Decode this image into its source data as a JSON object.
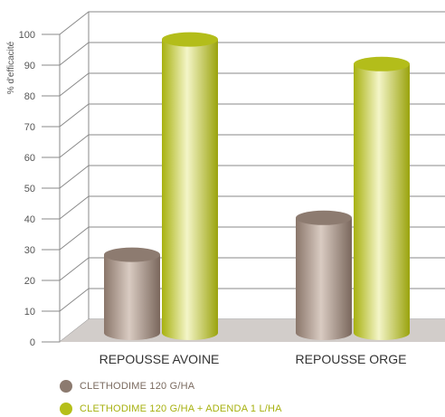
{
  "chart_data": {
    "type": "bar",
    "ylabel": "% d'efficacité",
    "xlabel": "",
    "ylim": [
      0,
      100
    ],
    "yticks": [
      0,
      10,
      20,
      30,
      40,
      50,
      60,
      70,
      80,
      90,
      100
    ],
    "categories": [
      "REPOUSSE AVOINE",
      "REPOUSSE ORGE"
    ],
    "series": [
      {
        "name": "CLETHODIME 120 G/HA",
        "values": [
          26,
          38
        ],
        "color": "#8c7a6f"
      },
      {
        "name": "CLETHODIME 120 G/HA + ADENDA 1 L/HA",
        "values": [
          96,
          88
        ],
        "color": "#b5bf1a"
      }
    ],
    "legend_position": "bottom-left",
    "grid": true
  }
}
